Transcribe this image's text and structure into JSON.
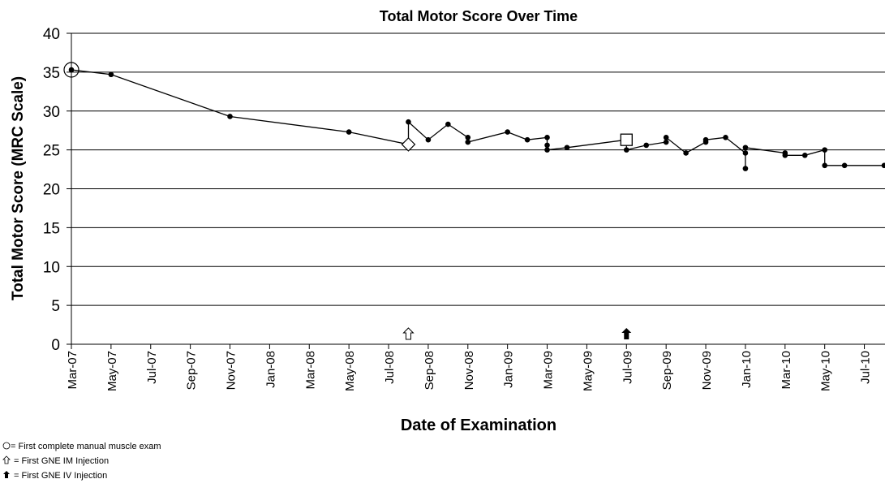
{
  "chart_data": {
    "type": "line",
    "title": "Total Motor Score Over Time",
    "x_label": "Date of Examination",
    "y_label": "Total Motor Score (MRC Scale)",
    "x": [
      "2007-03",
      "2007-05",
      "2007-11",
      "2008-05",
      "2008-08",
      "2008-08",
      "2008-09",
      "2008-10",
      "2008-11",
      "2008-11",
      "2009-01",
      "2009-02",
      "2009-03",
      "2009-03",
      "2009-03",
      "2009-04",
      "2009-07",
      "2009-07",
      "2009-08",
      "2009-09",
      "2009-09",
      "2009-10",
      "2009-11",
      "2009-11",
      "2009-12",
      "2010-01",
      "2010-01",
      "2010-01",
      "2010-03",
      "2010-03",
      "2010-04",
      "2010-05",
      "2010-05",
      "2010-06",
      "2010-08"
    ],
    "values": [
      35.3,
      34.7,
      29.3,
      27.3,
      25.7,
      28.6,
      26.3,
      28.3,
      26.6,
      26.0,
      27.3,
      26.3,
      26.6,
      25.6,
      25.0,
      25.3,
      26.3,
      25.0,
      25.6,
      26.0,
      26.6,
      24.6,
      26.0,
      26.3,
      26.6,
      24.6,
      22.6,
      25.3,
      24.6,
      24.3,
      24.3,
      25.0,
      23.0,
      23.0,
      23.0
    ],
    "color": "#000000",
    "xlim": [
      "2007-03",
      "2010-08"
    ],
    "xticks": [
      {
        "value": "2007-03",
        "label": "Mar-07"
      },
      {
        "value": "2007-05",
        "label": "May-07"
      },
      {
        "value": "2007-07",
        "label": "Jul-07"
      },
      {
        "value": "2007-09",
        "label": "Sep-07"
      },
      {
        "value": "2007-11",
        "label": "Nov-07"
      },
      {
        "value": "2008-01",
        "label": "Jan-08"
      },
      {
        "value": "2008-03",
        "label": "Mar-08"
      },
      {
        "value": "2008-05",
        "label": "May-08"
      },
      {
        "value": "2008-07",
        "label": "Jul-08"
      },
      {
        "value": "2008-09",
        "label": "Sep-08"
      },
      {
        "value": "2008-11",
        "label": "Nov-08"
      },
      {
        "value": "2009-01",
        "label": "Jan-09"
      },
      {
        "value": "2009-03",
        "label": "Mar-09"
      },
      {
        "value": "2009-05",
        "label": "May-09"
      },
      {
        "value": "2009-07",
        "label": "Jul-09"
      },
      {
        "value": "2009-09",
        "label": "Sep-09"
      },
      {
        "value": "2009-11",
        "label": "Nov-09"
      },
      {
        "value": "2010-01",
        "label": "Jan-10"
      },
      {
        "value": "2010-03",
        "label": "Mar-10"
      },
      {
        "value": "2010-05",
        "label": "May-10"
      },
      {
        "value": "2010-07",
        "label": "Jul-10"
      }
    ],
    "ylim": [
      0,
      40
    ],
    "yticks": [
      0,
      5,
      10,
      15,
      20,
      25,
      30,
      35,
      40
    ],
    "grid": true,
    "notes": [
      "= First complete manual muscle exam",
      "= First GNE IM Injection",
      "= First GNE IV Injection"
    ]
  }
}
